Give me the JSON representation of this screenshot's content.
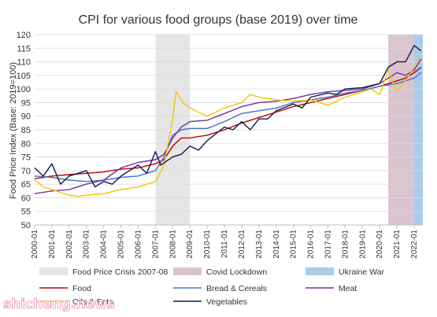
{
  "chart_data": {
    "type": "line",
    "title": "CPI for various food groups (base 2019) over time",
    "ylabel": "Food Price Index  (Base: 2019=100)",
    "xlabel": "",
    "ylim": [
      50,
      120
    ],
    "yticks": [
      50,
      55,
      60,
      65,
      70,
      75,
      80,
      85,
      90,
      95,
      100,
      105,
      110,
      115,
      120
    ],
    "xlim": [
      2000.0,
      2022.5
    ],
    "xtick_labels": [
      "2000-01",
      "2001-01",
      "2002-01",
      "2003-01",
      "2004-01",
      "2005-01",
      "2006-01",
      "2007-01",
      "2008-01",
      "2009-01",
      "2010-01",
      "2011-01",
      "2012-01",
      "2013-01",
      "2014-01",
      "2015-01",
      "2016-01",
      "2017-01",
      "2018-01",
      "2019-01",
      "2020-01",
      "2021-01",
      "2022-01"
    ],
    "xtick_values": [
      2000,
      2001,
      2002,
      2003,
      2004,
      2005,
      2006,
      2007,
      2008,
      2009,
      2010,
      2011,
      2012,
      2013,
      2014,
      2015,
      2016,
      2017,
      2018,
      2019,
      2020,
      2021,
      2022
    ],
    "grid": true,
    "legend_position": "bottom",
    "bands": [
      {
        "name": "Food Price Crisis 2007-08",
        "start": 2007.0,
        "end": 2009.0,
        "color": "#e6e6e6"
      },
      {
        "name": "Covid Lockdown",
        "start": 2020.5,
        "end": 2022.0,
        "color": "#d9c4d0"
      },
      {
        "name": "Ukraine War",
        "start": 2022.0,
        "end": 2022.5,
        "color": "#a9ccee"
      }
    ],
    "series": [
      {
        "name": "Food",
        "color": "#c00000",
        "points": [
          [
            2000.0,
            67
          ],
          [
            2001.0,
            68
          ],
          [
            2002.0,
            68.5
          ],
          [
            2003.0,
            69
          ],
          [
            2004.0,
            69.5
          ],
          [
            2005.0,
            70.5
          ],
          [
            2006.0,
            71
          ],
          [
            2007.0,
            72.5
          ],
          [
            2007.5,
            74
          ],
          [
            2008.0,
            79
          ],
          [
            2008.5,
            82
          ],
          [
            2009.0,
            82
          ],
          [
            2009.5,
            82.5
          ],
          [
            2010.0,
            83
          ],
          [
            2011.0,
            85
          ],
          [
            2012.0,
            87.5
          ],
          [
            2013.0,
            89.5
          ],
          [
            2014.0,
            91.5
          ],
          [
            2015.0,
            93.5
          ],
          [
            2016.0,
            95
          ],
          [
            2017.0,
            96.5
          ],
          [
            2018.0,
            98
          ],
          [
            2019.0,
            99.5
          ],
          [
            2020.0,
            101
          ],
          [
            2021.0,
            103
          ],
          [
            2021.5,
            104
          ],
          [
            2022.0,
            106
          ],
          [
            2022.4,
            108
          ]
        ]
      },
      {
        "name": "Bread & Cereals",
        "color": "#4472c4",
        "points": [
          [
            2000.0,
            68
          ],
          [
            2001.0,
            67.5
          ],
          [
            2002.0,
            66.5
          ],
          [
            2003.0,
            66
          ],
          [
            2004.0,
            66.5
          ],
          [
            2005.0,
            67.5
          ],
          [
            2006.0,
            68
          ],
          [
            2007.0,
            70
          ],
          [
            2007.5,
            75
          ],
          [
            2008.0,
            83
          ],
          [
            2008.5,
            85
          ],
          [
            2009.0,
            85.5
          ],
          [
            2010.0,
            85.5
          ],
          [
            2011.0,
            88
          ],
          [
            2012.0,
            91
          ],
          [
            2013.0,
            92
          ],
          [
            2014.0,
            93
          ],
          [
            2015.0,
            95
          ],
          [
            2016.0,
            96
          ],
          [
            2017.0,
            97
          ],
          [
            2018.0,
            98.5
          ],
          [
            2019.0,
            99.5
          ],
          [
            2020.0,
            101
          ],
          [
            2021.0,
            102
          ],
          [
            2021.5,
            103
          ],
          [
            2022.0,
            104
          ],
          [
            2022.4,
            106
          ]
        ]
      },
      {
        "name": "Meat",
        "color": "#7030a0",
        "points": [
          [
            2000.0,
            61.5
          ],
          [
            2001.0,
            62.5
          ],
          [
            2002.0,
            63
          ],
          [
            2003.0,
            65
          ],
          [
            2004.0,
            66.5
          ],
          [
            2005.0,
            71
          ],
          [
            2006.0,
            73
          ],
          [
            2007.0,
            74
          ],
          [
            2007.5,
            76
          ],
          [
            2008.0,
            82
          ],
          [
            2008.5,
            86
          ],
          [
            2009.0,
            88
          ],
          [
            2010.0,
            88.5
          ],
          [
            2011.0,
            91
          ],
          [
            2012.0,
            93.5
          ],
          [
            2013.0,
            95
          ],
          [
            2014.0,
            95.5
          ],
          [
            2015.0,
            96.5
          ],
          [
            2016.0,
            98
          ],
          [
            2017.0,
            99
          ],
          [
            2018.0,
            99.5
          ],
          [
            2019.0,
            100
          ],
          [
            2020.0,
            102
          ],
          [
            2020.5,
            104
          ],
          [
            2021.0,
            106
          ],
          [
            2021.5,
            105
          ],
          [
            2022.0,
            107
          ],
          [
            2022.4,
            111
          ]
        ]
      },
      {
        "name": "Oils & Fats",
        "color": "#f5c400",
        "points": [
          [
            2000.0,
            66.5
          ],
          [
            2000.5,
            64
          ],
          [
            2001.0,
            63
          ],
          [
            2002.0,
            61
          ],
          [
            2002.5,
            60.5
          ],
          [
            2003.0,
            61
          ],
          [
            2004.0,
            61.5
          ],
          [
            2005.0,
            63
          ],
          [
            2006.0,
            64
          ],
          [
            2007.0,
            66
          ],
          [
            2007.5,
            72
          ],
          [
            2008.0,
            89
          ],
          [
            2008.2,
            99
          ],
          [
            2008.6,
            95
          ],
          [
            2009.0,
            93
          ],
          [
            2010.0,
            90
          ],
          [
            2011.0,
            93
          ],
          [
            2012.0,
            95
          ],
          [
            2012.5,
            98
          ],
          [
            2013.0,
            97
          ],
          [
            2014.0,
            96
          ],
          [
            2015.0,
            95.5
          ],
          [
            2016.0,
            96
          ],
          [
            2016.5,
            95
          ],
          [
            2017.0,
            94
          ],
          [
            2018.0,
            97
          ],
          [
            2019.0,
            99
          ],
          [
            2019.5,
            100
          ],
          [
            2020.0,
            98
          ],
          [
            2020.5,
            107
          ],
          [
            2021.0,
            99
          ],
          [
            2021.5,
            103
          ],
          [
            2022.0,
            108
          ],
          [
            2022.4,
            112
          ]
        ]
      },
      {
        "name": "Vegetables",
        "color": "#0d1b4d",
        "points": [
          [
            2000.0,
            71
          ],
          [
            2000.5,
            68
          ],
          [
            2001.0,
            72.5
          ],
          [
            2001.5,
            65
          ],
          [
            2002.0,
            68
          ],
          [
            2003.0,
            70
          ],
          [
            2003.5,
            64
          ],
          [
            2004.0,
            66
          ],
          [
            2004.5,
            65
          ],
          [
            2005.0,
            68
          ],
          [
            2006.0,
            72
          ],
          [
            2006.5,
            69
          ],
          [
            2007.0,
            77
          ],
          [
            2007.3,
            72
          ],
          [
            2008.0,
            75
          ],
          [
            2008.5,
            76
          ],
          [
            2009.0,
            79
          ],
          [
            2009.5,
            77.5
          ],
          [
            2010.0,
            81
          ],
          [
            2011.0,
            86
          ],
          [
            2011.5,
            85
          ],
          [
            2012.0,
            88
          ],
          [
            2012.5,
            85
          ],
          [
            2013.0,
            89
          ],
          [
            2013.5,
            89
          ],
          [
            2014.0,
            92
          ],
          [
            2015.0,
            94.5
          ],
          [
            2015.5,
            93
          ],
          [
            2016.0,
            97
          ],
          [
            2017.0,
            98.5
          ],
          [
            2017.5,
            98
          ],
          [
            2018.0,
            100
          ],
          [
            2019.0,
            100.5
          ],
          [
            2020.0,
            102
          ],
          [
            2020.5,
            108
          ],
          [
            2021.0,
            110
          ],
          [
            2021.5,
            110
          ],
          [
            2022.0,
            116
          ],
          [
            2022.4,
            114
          ]
        ]
      }
    ]
  }
}
